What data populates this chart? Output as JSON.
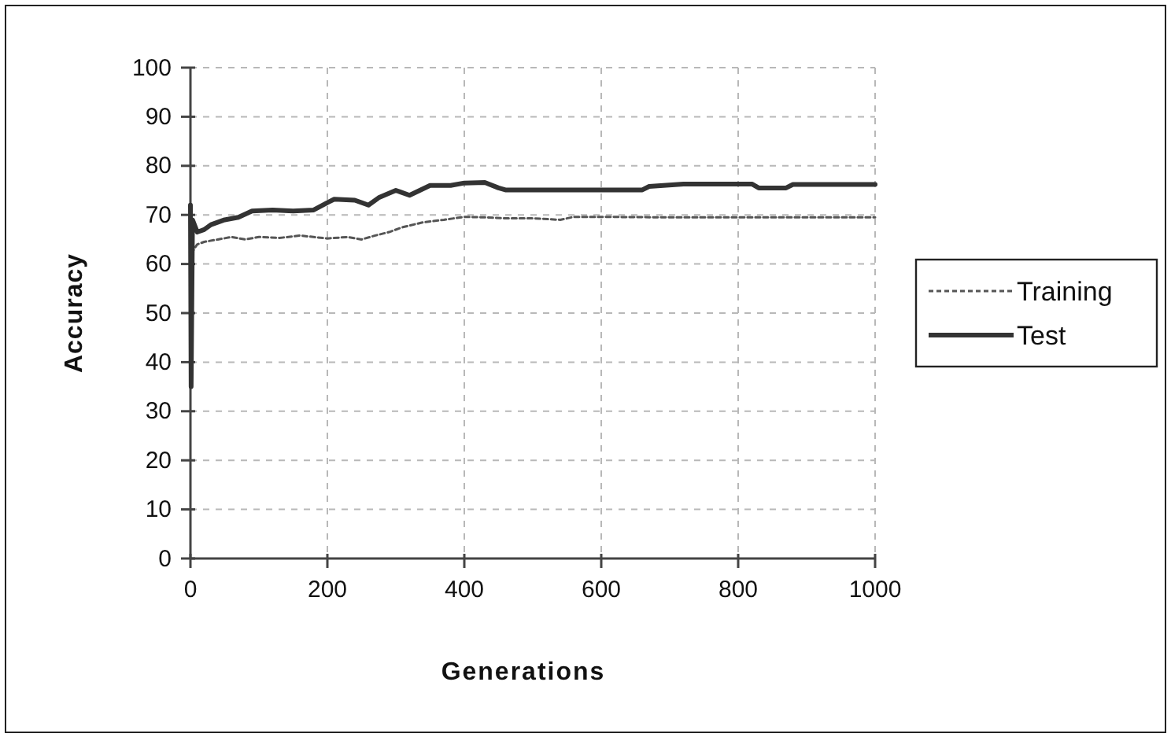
{
  "chart_data": {
    "type": "line",
    "xlabel": "Generations",
    "ylabel": "Accuracy",
    "xlim": [
      0,
      1000
    ],
    "ylim": [
      0,
      100
    ],
    "xticks": [
      0,
      200,
      400,
      600,
      800,
      1000
    ],
    "yticks": [
      0,
      10,
      20,
      30,
      40,
      50,
      60,
      70,
      80,
      90,
      100
    ],
    "grid": true,
    "legend": "right",
    "marker": "none",
    "series": [
      {
        "name": "Training",
        "color": "#555555",
        "line_style": "dashed",
        "x": [
          2,
          5,
          10,
          20,
          40,
          60,
          80,
          100,
          130,
          160,
          200,
          230,
          250,
          270,
          290,
          310,
          340,
          370,
          400,
          430,
          460,
          500,
          540,
          560,
          600,
          700,
          800,
          900,
          1000
        ],
        "values": [
          62,
          63,
          64,
          64.5,
          65,
          65.5,
          65,
          65.5,
          65.3,
          65.8,
          65.2,
          65.5,
          65,
          65.8,
          66.5,
          67.5,
          68.5,
          69,
          69.6,
          69.5,
          69.3,
          69.3,
          69,
          69.6,
          69.6,
          69.5,
          69.5,
          69.5,
          69.5
        ]
      },
      {
        "name": "Test",
        "color": "#333333",
        "line_style": "solid",
        "x": [
          0,
          1,
          3,
          10,
          20,
          30,
          50,
          70,
          90,
          120,
          150,
          180,
          200,
          210,
          240,
          260,
          275,
          300,
          320,
          350,
          380,
          400,
          430,
          450,
          460,
          660,
          670,
          720,
          820,
          830,
          870,
          880,
          1000
        ],
        "values": [
          72,
          35,
          69,
          66.5,
          67,
          68,
          69,
          69.5,
          70.8,
          71,
          70.8,
          71,
          72.5,
          73.2,
          73,
          72,
          73.5,
          75,
          74,
          76,
          76,
          76.5,
          76.6,
          75.5,
          75.1,
          75.1,
          75.8,
          76.3,
          76.3,
          75.5,
          75.5,
          76.2,
          76.2
        ]
      }
    ]
  }
}
